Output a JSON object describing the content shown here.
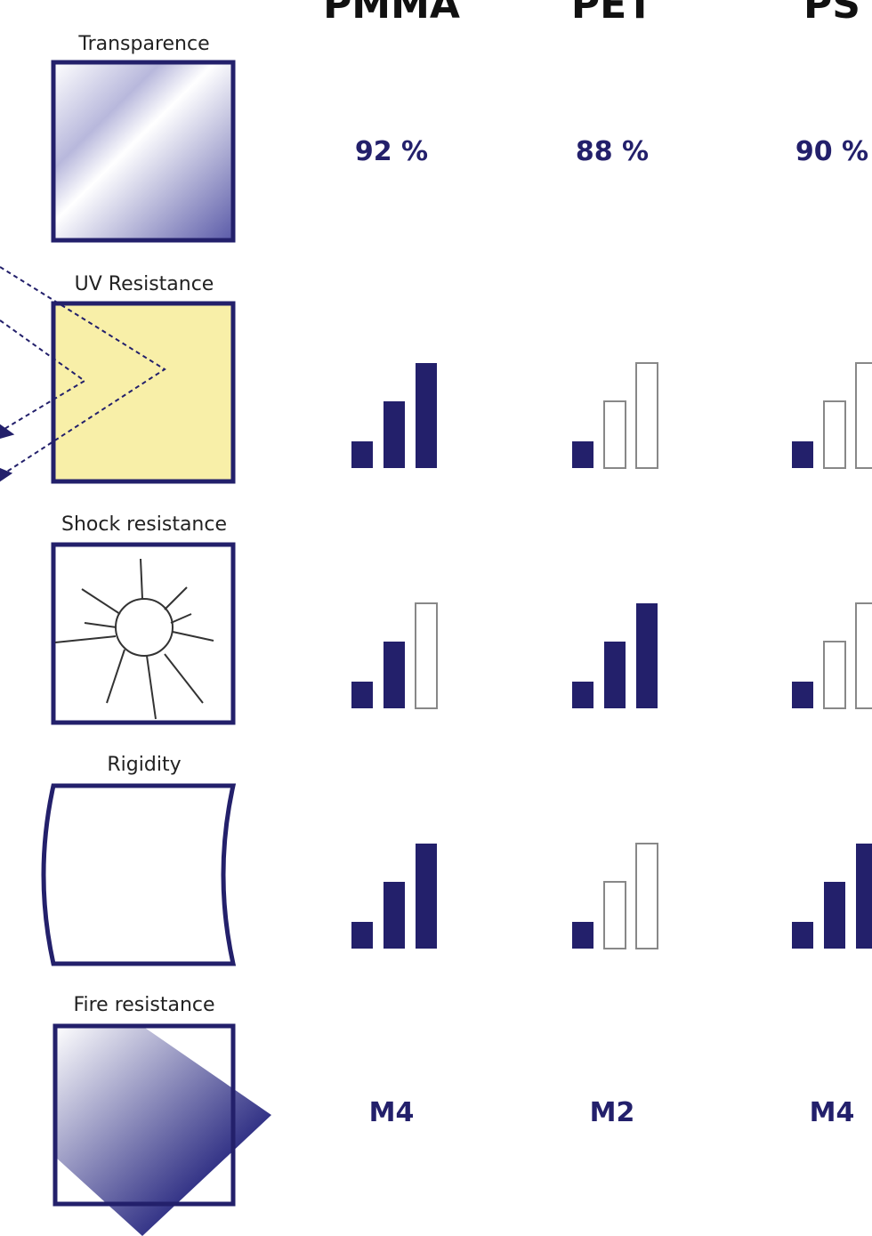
{
  "columns": [
    "PMMA",
    "PET",
    "PS"
  ],
  "rows": [
    {
      "label": "Transparence",
      "values": [
        "92 %",
        "88 %",
        "90 %"
      ]
    },
    {
      "label": "UV Resistance",
      "ratings": [
        3,
        1,
        1
      ]
    },
    {
      "label": "Shock resistance",
      "ratings": [
        2,
        3,
        1
      ]
    },
    {
      "label": "Rigidity",
      "ratings": [
        3,
        1,
        3
      ]
    },
    {
      "label": "Fire resistance",
      "values": [
        "M4",
        "M2",
        "M4"
      ]
    }
  ]
}
